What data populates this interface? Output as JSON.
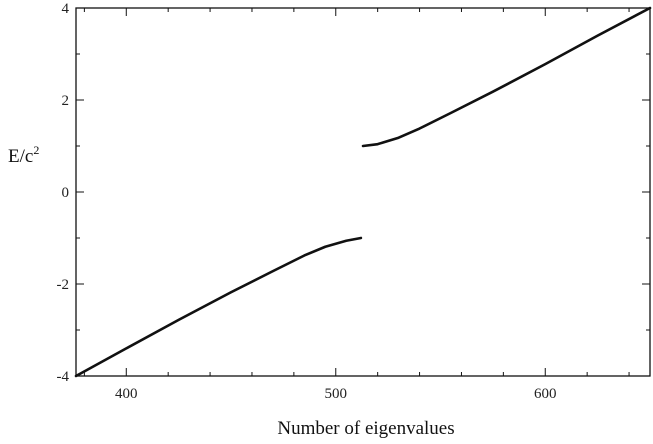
{
  "chart_data": {
    "type": "line",
    "title": "",
    "xlabel": "Number of eigenvalues",
    "ylabel": "E/c",
    "ylabel_superscript": "2",
    "xlim": [
      376,
      650
    ],
    "ylim": [
      -4,
      4
    ],
    "x_ticks": [
      400,
      500,
      600
    ],
    "y_ticks": [
      4,
      2,
      0,
      -2,
      -4
    ],
    "x_tick_labels": [
      "400",
      "500",
      "600"
    ],
    "y_tick_labels": [
      "4",
      "2",
      "0",
      "-2",
      "-4"
    ],
    "grid": false,
    "legend": "none",
    "series": [
      {
        "color": "#111111",
        "points": [
          [
            376,
            -4.0
          ],
          [
            400,
            -3.4
          ],
          [
            425,
            -2.78
          ],
          [
            450,
            -2.18
          ],
          [
            470,
            -1.72
          ],
          [
            485,
            -1.38
          ],
          [
            495,
            -1.19
          ],
          [
            505,
            -1.06
          ],
          [
            512,
            -1.0
          ]
        ]
      },
      {
        "color": "#111111",
        "points": [
          [
            513,
            1.0
          ],
          [
            520,
            1.04
          ],
          [
            530,
            1.18
          ],
          [
            540,
            1.38
          ],
          [
            555,
            1.72
          ],
          [
            575,
            2.18
          ],
          [
            600,
            2.78
          ],
          [
            625,
            3.4
          ],
          [
            650,
            4.0
          ]
        ]
      }
    ]
  }
}
